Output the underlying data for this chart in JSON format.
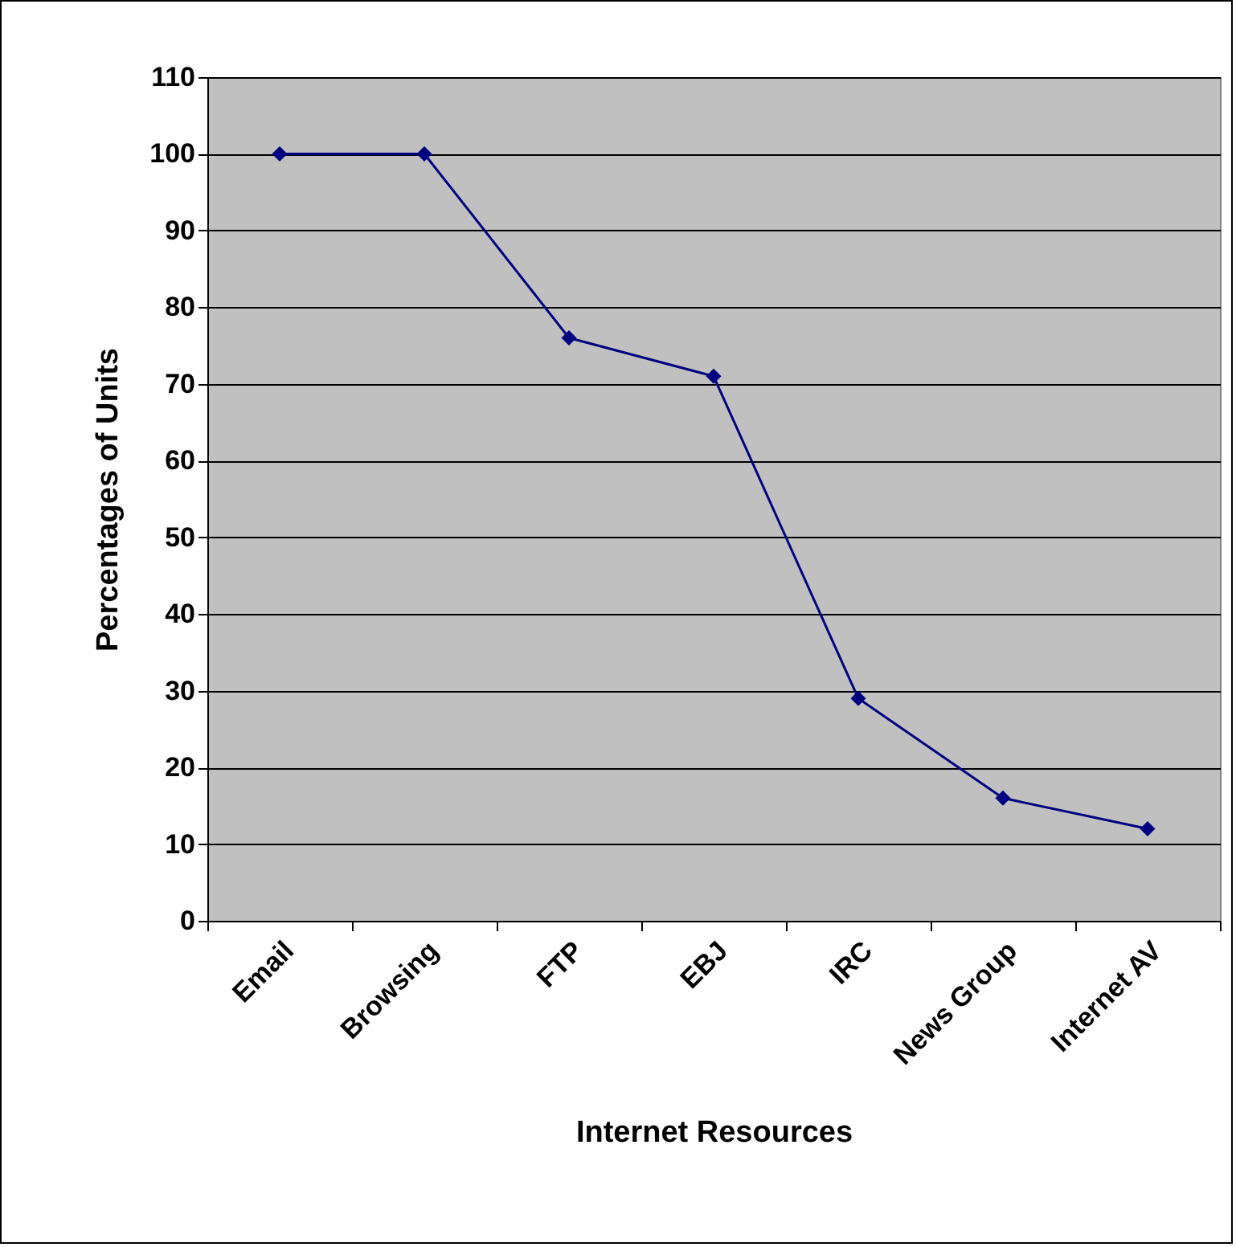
{
  "chart_data": {
    "type": "line",
    "xlabel": "Internet Resources",
    "ylabel": "Percentages of Units",
    "categories": [
      "Email",
      "Browsing",
      "FTP",
      "EBJ",
      "IRC",
      "News Group",
      "Internet AV"
    ],
    "series": [
      {
        "color": "#000080",
        "values": [
          100,
          100,
          76,
          71,
          29,
          16,
          12
        ]
      }
    ],
    "ylim": [
      0,
      110
    ],
    "yticks": [
      0,
      10,
      20,
      30,
      40,
      50,
      60,
      70,
      80,
      90,
      100,
      110
    ],
    "grid": "y",
    "marker": "diamond",
    "line_style": "solid"
  }
}
